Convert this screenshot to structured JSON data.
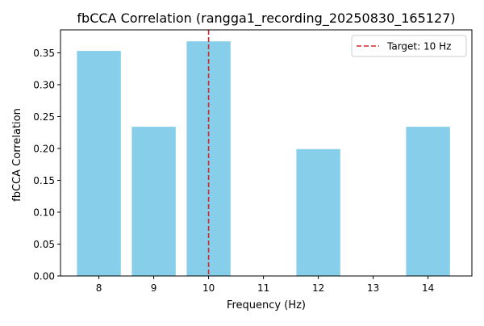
{
  "chart_data": {
    "type": "bar",
    "title": "fbCCA Correlation (rangga1_recording_20250830_165127)",
    "xlabel": "Frequency (Hz)",
    "ylabel": "fbCCA Correlation",
    "x": [
      8,
      9,
      10,
      12,
      14
    ],
    "values": [
      0.353,
      0.234,
      0.368,
      0.199,
      0.234
    ],
    "xlim": [
      7.3,
      14.8
    ],
    "ylim": [
      0,
      0.386
    ],
    "xticks": [
      8,
      9,
      10,
      11,
      12,
      13,
      14
    ],
    "yticks": [
      0.0,
      0.05,
      0.1,
      0.15,
      0.2,
      0.25,
      0.3,
      0.35
    ],
    "yticklabels": [
      "0.00",
      "0.05",
      "0.10",
      "0.15",
      "0.20",
      "0.25",
      "0.30",
      "0.35"
    ],
    "bar_color": "#87CEEB",
    "target_line": {
      "x": 10,
      "label": "Target: 10 Hz",
      "color": "#d62728",
      "style": "dashed"
    },
    "legend": {
      "position": "top-right",
      "entries": [
        "Target: 10 Hz"
      ]
    },
    "grid": false
  }
}
